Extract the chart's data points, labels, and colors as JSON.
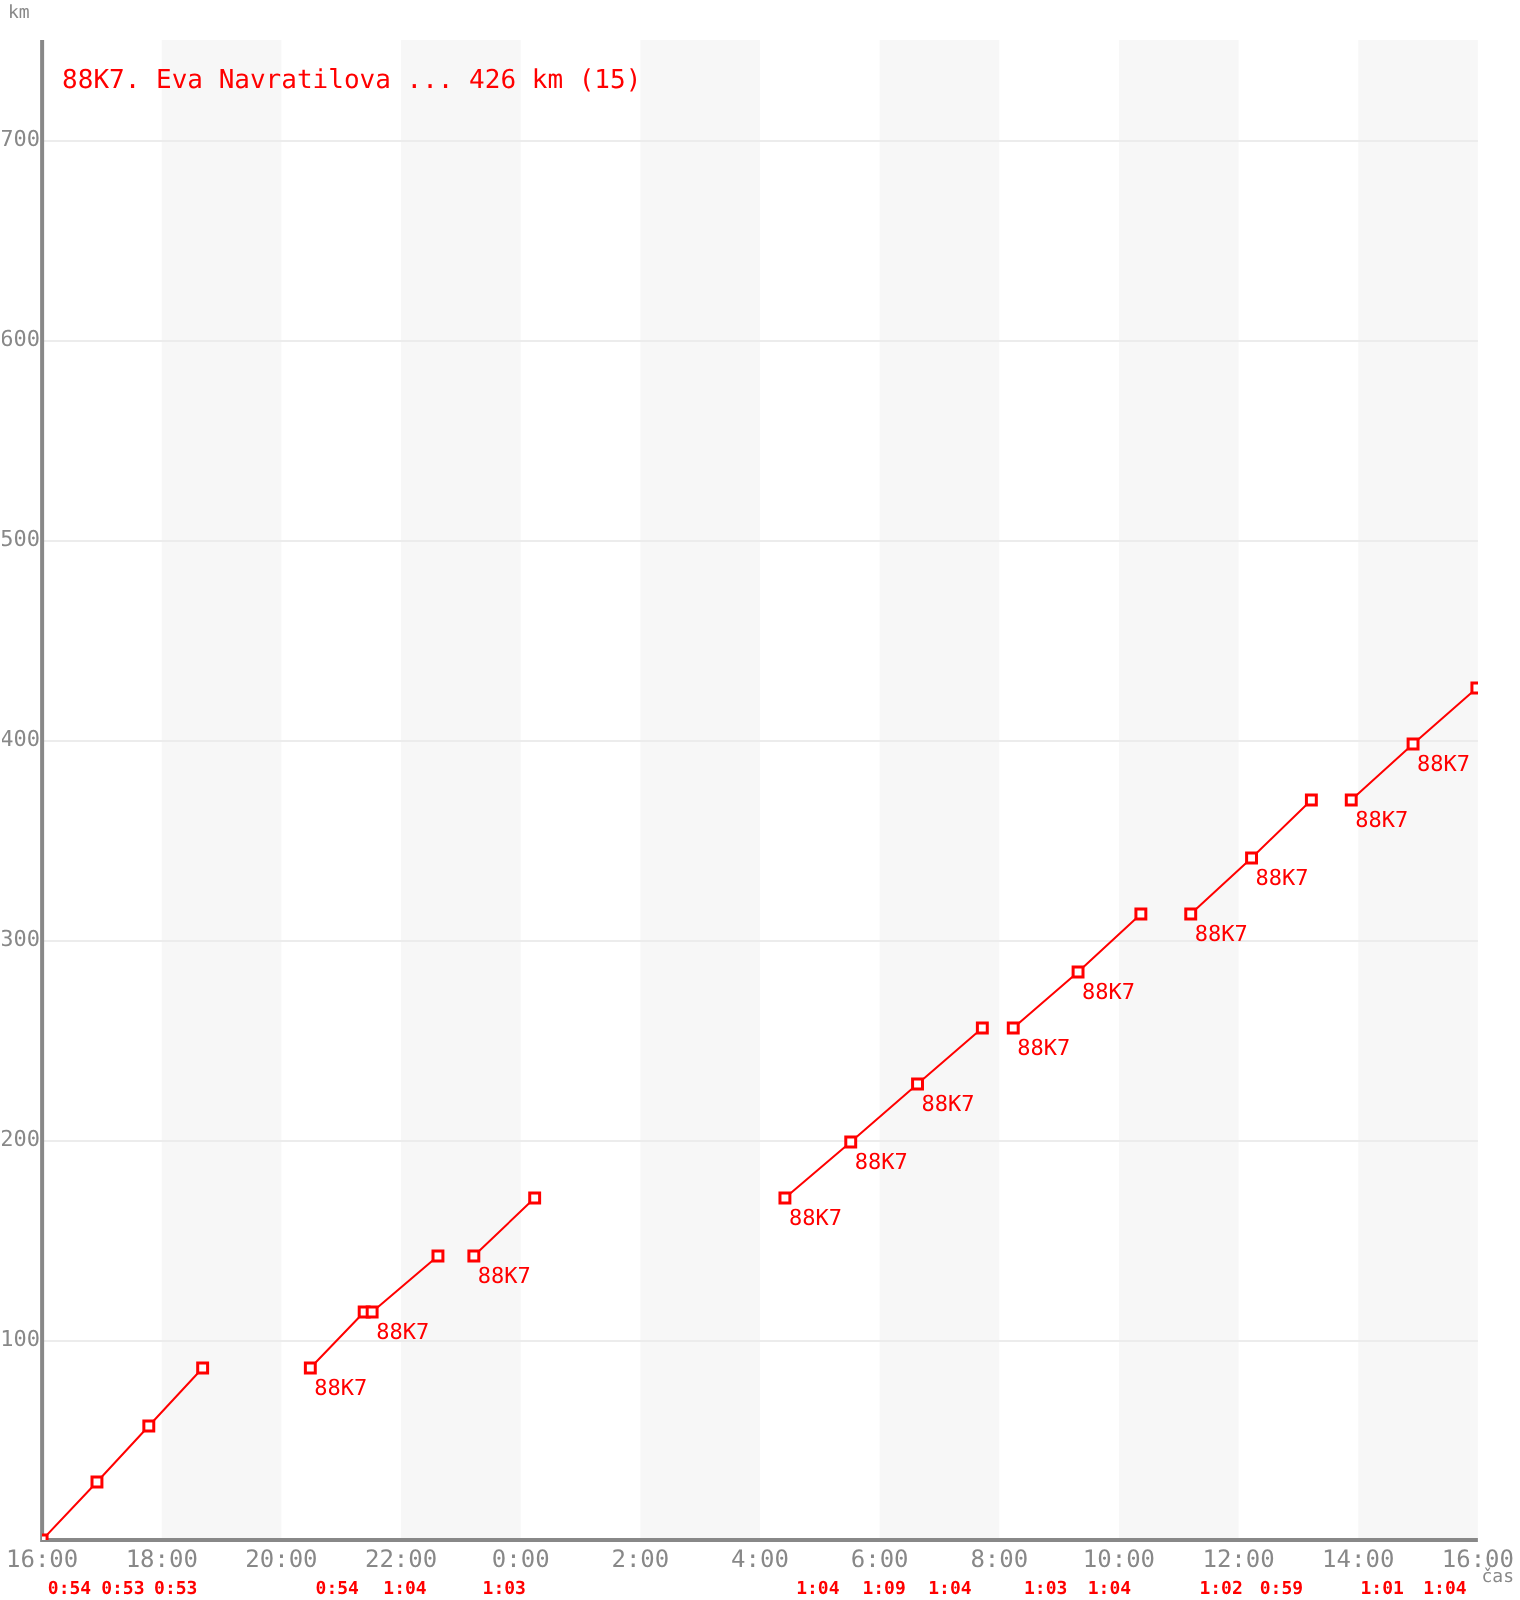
{
  "chart_data": {
    "type": "line",
    "title": "88K7. Eva Navratilova ... 426 km (15)",
    "xlabel": "čas",
    "ylabel": "km",
    "x": [
      "--01-01T16:00",
      "--01-01T16:55",
      "--01-01T17:47",
      "--01-01T18:41",
      "--01-01T19:36",
      "--01-01T20:29",
      "--01-01T21:23",
      "--01-01T21:31",
      "--01-01T22:37",
      "--01-01T22:54",
      "--01-01T23:13",
      "--01-02T00:14",
      "--01-02T02:18",
      "--01-02T04:25",
      "--01-02T05:31",
      "--01-02T06:38",
      "--01-02T07:43",
      "--01-02T08:00",
      "--01-02T08:14",
      "--01-02T09:19",
      "--01-02T10:22",
      "--01-02T10:48",
      "--01-02T11:12",
      "--01-02T12:13",
      "--01-02T13:13",
      "--01-02T13:30",
      "--01-02T13:53",
      "--01-02T14:55",
      "--01-02T15:59"
    ],
    "series": [
      {
        "color": "#ff0000",
        "values": [
          0,
          29,
          57,
          86,
          null,
          86,
          114,
          114,
          142,
          null,
          142,
          171,
          null,
          171,
          199,
          228,
          256,
          null,
          256,
          284,
          313,
          null,
          313,
          341,
          370,
          null,
          370,
          398,
          426
        ]
      }
    ],
    "xlim": [
      "--01-01T16:00",
      "--01-02T16:00"
    ],
    "xticks": [
      {
        "value": "--01-01T16:00",
        "label": "16:00"
      },
      {
        "value": "--01-01T18:00",
        "label": "18:00"
      },
      {
        "value": "--01-01T20:00",
        "label": "20:00"
      },
      {
        "value": "--01-01T22:00",
        "label": "22:00"
      },
      {
        "value": "--01-02T00:00",
        "label": "0:00"
      },
      {
        "value": "--01-02T02:00",
        "label": "2:00"
      },
      {
        "value": "--01-02T04:00",
        "label": "4:00"
      },
      {
        "value": "--01-02T06:00",
        "label": "6:00"
      },
      {
        "value": "--01-02T08:00",
        "label": "8:00"
      },
      {
        "value": "--01-02T10:00",
        "label": "10:00"
      },
      {
        "value": "--01-02T12:00",
        "label": "12:00"
      },
      {
        "value": "--01-02T14:00",
        "label": "14:00"
      },
      {
        "value": "--01-02T16:00",
        "label": "16:00"
      }
    ],
    "ylim": [
      0,
      750
    ],
    "yticks": [
      100,
      200,
      300,
      400,
      500,
      600,
      700
    ],
    "grid": "y",
    "marker": "square",
    "line_style": "solid",
    "legend": false,
    "bands": [
      {
        "axis": "x",
        "from": "--01-01T18:00",
        "to": "--01-01T20:00",
        "color": "#f7f7f7"
      },
      {
        "axis": "x",
        "from": "--01-01T22:00",
        "to": "--01-02T00:00",
        "color": "#f7f7f7"
      },
      {
        "axis": "x",
        "from": "--01-02T02:00",
        "to": "--01-02T04:00",
        "color": "#f7f7f7"
      },
      {
        "axis": "x",
        "from": "--01-02T06:00",
        "to": "--01-02T08:00",
        "color": "#f7f7f7"
      },
      {
        "axis": "x",
        "from": "--01-02T10:00",
        "to": "--01-02T12:00",
        "color": "#f7f7f7"
      },
      {
        "axis": "x",
        "from": "--01-02T14:00",
        "to": "--01-02T16:00",
        "color": "#f7f7f7"
      }
    ],
    "annotations": [
      {
        "text": "88K7",
        "x": "--01-01T20:29",
        "y": 86
      },
      {
        "text": "88K7",
        "x": "--01-01T21:31",
        "y": 114
      },
      {
        "text": "88K7",
        "x": "--01-01T23:13",
        "y": 142
      },
      {
        "text": "88K7",
        "x": "--01-02T04:25",
        "y": 171
      },
      {
        "text": "88K7",
        "x": "--01-02T05:31",
        "y": 199
      },
      {
        "text": "88K7",
        "x": "--01-02T06:38",
        "y": 228
      },
      {
        "text": "88K7",
        "x": "--01-02T08:14",
        "y": 256
      },
      {
        "text": "88K7",
        "x": "--01-02T09:19",
        "y": 284
      },
      {
        "text": "88K7",
        "x": "--01-02T11:12",
        "y": 313
      },
      {
        "text": "88K7",
        "x": "--01-02T12:13",
        "y": 341
      },
      {
        "text": "88K7",
        "x": "--01-02T13:53",
        "y": 370
      },
      {
        "text": "88K7",
        "x": "--01-02T14:55",
        "y": 398
      },
      "0:54",
      "0:53",
      "0:53",
      "0:54",
      "1:04",
      "1:03",
      "1:04",
      "1:09",
      "1:04",
      "1:03",
      "1:04",
      "1:02",
      "0:59",
      "1:01",
      "1:04"
    ]
  }
}
